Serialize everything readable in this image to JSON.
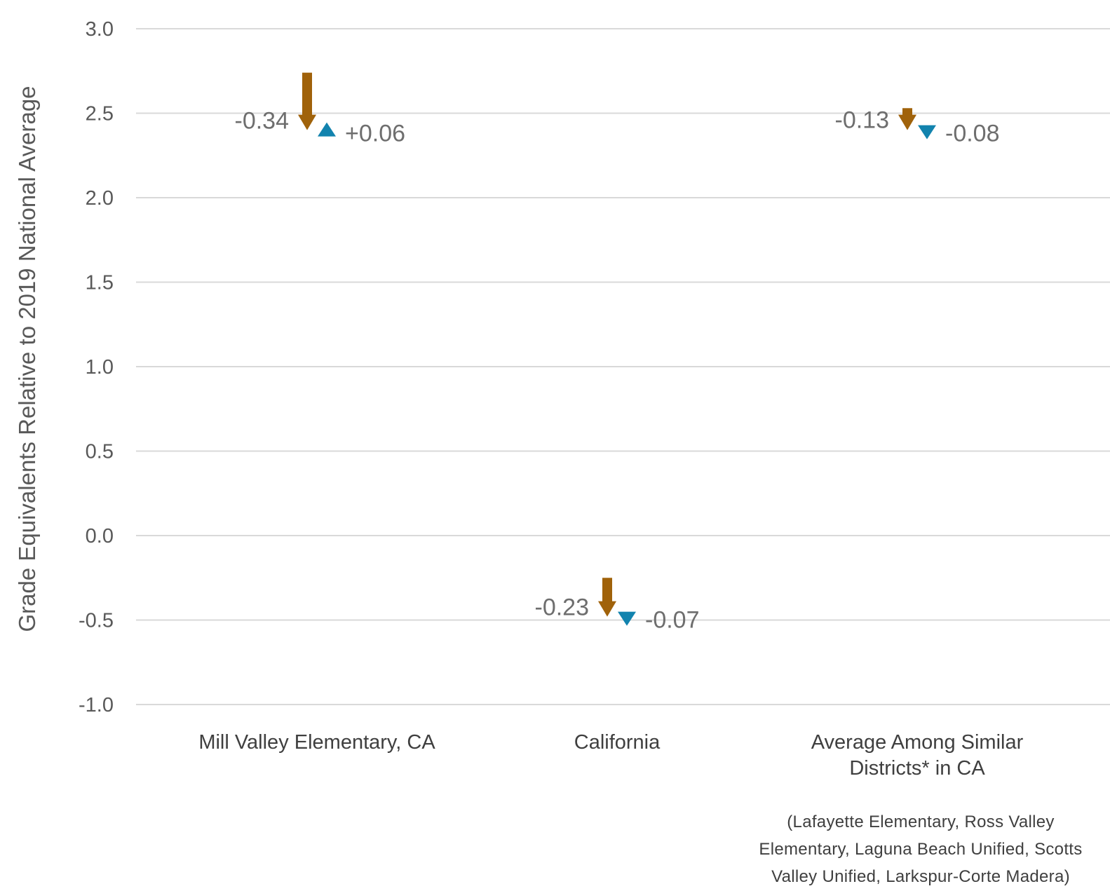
{
  "chart_data": {
    "type": "arrow-dot",
    "ylabel": "Grade Equivalents Relative to 2019 National Average",
    "ylim": [
      -1.0,
      3.0
    ],
    "yticks": [
      "3.0",
      "2.5",
      "2.0",
      "1.5",
      "1.0",
      "0.5",
      "0.0",
      "-0.5",
      "-1.0"
    ],
    "grid": true,
    "colors": {
      "change_a": "#A0620A",
      "change_b": "#1283AE",
      "grid": "#D9D9D9"
    },
    "categories": [
      {
        "label_lines": [
          "Mill Valley Elementary, CA"
        ],
        "a_from": 2.74,
        "a_to": 2.4,
        "a_label": "-0.34",
        "b_value": 2.4,
        "b_change": 0.06,
        "b_label": "+0.06"
      },
      {
        "label_lines": [
          "California"
        ],
        "a_from": -0.25,
        "a_to": -0.48,
        "a_label": "-0.23",
        "b_value": -0.48,
        "b_change": -0.07,
        "b_label": "-0.07"
      },
      {
        "label_lines": [
          "Average Among Similar",
          "Districts* in CA"
        ],
        "a_from": 2.53,
        "a_to": 2.4,
        "a_label": "-0.13",
        "b_value": 2.4,
        "b_change": -0.08,
        "b_label": "-0.08"
      }
    ],
    "footnote_lines": [
      "(Lafayette Elementary, Ross Valley",
      "Elementary, Laguna Beach Unified, Scotts",
      "Valley Unified, Larkspur-Corte Madera)"
    ]
  }
}
